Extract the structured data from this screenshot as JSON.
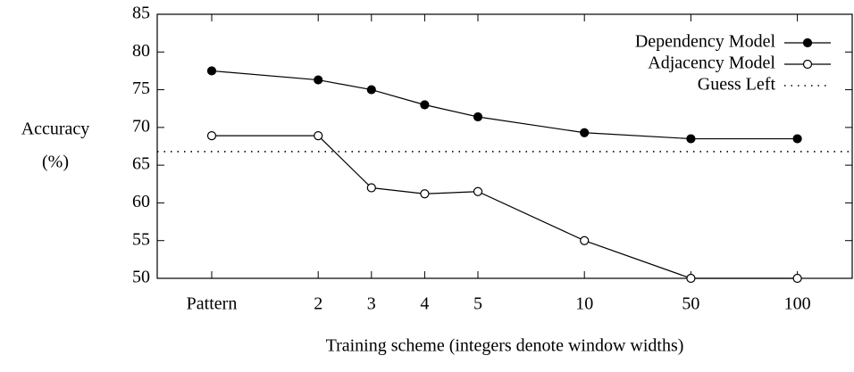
{
  "chart_data": {
    "type": "line",
    "categories": [
      "Pattern",
      "2",
      "3",
      "4",
      "5",
      "10",
      "50",
      "100"
    ],
    "series": [
      {
        "name": "Dependency Model",
        "color": "#000000",
        "marker": "filled",
        "values": [
          77.5,
          76.3,
          75,
          73,
          71.4,
          69.3,
          68.5,
          68.5
        ]
      },
      {
        "name": "Adjacency Model",
        "color": "#000000",
        "marker": "open",
        "values": [
          68.9,
          68.9,
          62,
          61.2,
          61.5,
          55,
          50,
          50
        ]
      }
    ],
    "reference_line": {
      "name": "Guess Left",
      "value": 66.8,
      "style": "dotted"
    },
    "ylabel": [
      "Accuracy",
      "(%)"
    ],
    "xlabel": "Training scheme (integers denote window widths)",
    "ylim": [
      50,
      85
    ],
    "yticks": [
      50,
      55,
      60,
      65,
      70,
      75,
      80,
      85
    ],
    "legend": "top-right",
    "grid": false
  }
}
